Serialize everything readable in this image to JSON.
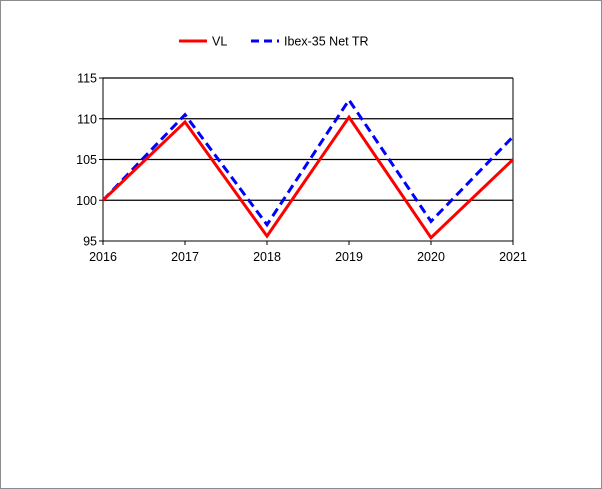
{
  "chart_data": {
    "type": "line",
    "x": [
      "2016",
      "2017",
      "2018",
      "2019",
      "2020",
      "2021"
    ],
    "series": [
      {
        "name": "VL",
        "values": [
          100,
          109.6,
          95.6,
          110.2,
          95.4,
          105.0
        ],
        "color": "#ff0000",
        "dash": "solid"
      },
      {
        "name": "Ibex-35 Net TR",
        "values": [
          100,
          110.5,
          97.0,
          112.3,
          97.4,
          107.8
        ],
        "color": "#0000ff",
        "dash": "dashed"
      }
    ],
    "ylim": [
      95,
      115
    ],
    "yticks": [
      95,
      100,
      105,
      110,
      115
    ],
    "grid": "horizontal",
    "legend_position": "top-center"
  }
}
